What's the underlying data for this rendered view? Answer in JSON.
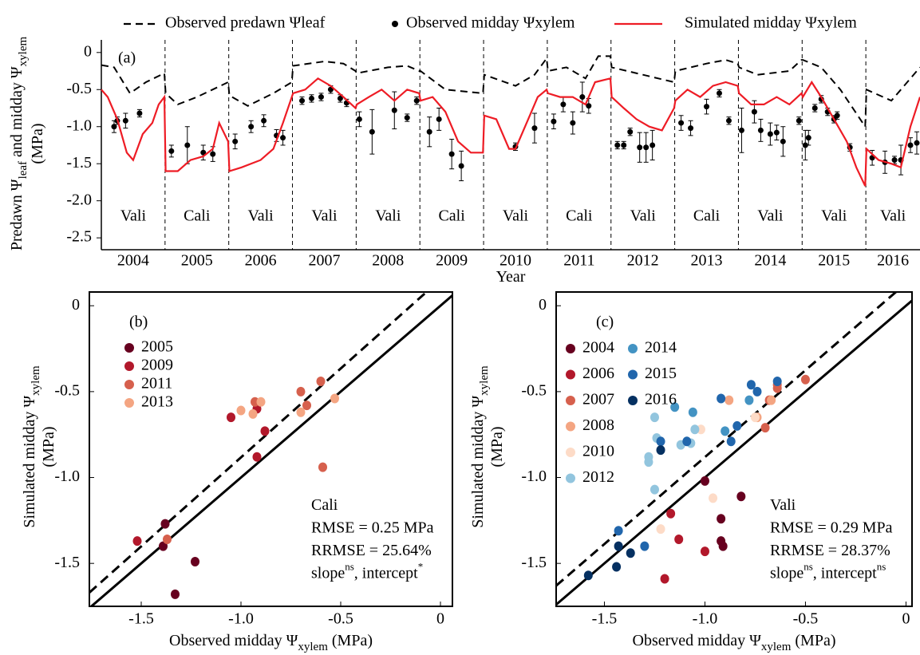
{
  "chart_data": [
    {
      "type": "line",
      "panel_label": "(a)",
      "ylabel": [
        [
          {
            "text": "Predawn Ψ",
            "sub": "leaf"
          },
          {
            "text": " and midday Ψ",
            "sub": "xylem"
          }
        ],
        [
          {
            "text": "(MPa)"
          }
        ]
      ],
      "xlabel": [
        [
          {
            "text": "Year"
          }
        ]
      ],
      "categories": [
        "2004",
        "2005",
        "2006",
        "2007",
        "2008",
        "2009",
        "2010",
        "2011",
        "2012",
        "2013",
        "2014",
        "2015",
        "2016"
      ],
      "crops": [
        "Vali",
        "Cali",
        "Vali",
        "Vali",
        "Vali",
        "Cali",
        "Vali",
        "Cali",
        "Vali",
        "Cali",
        "Vali",
        "Vali",
        "Vali"
      ],
      "xlim": [
        2004,
        2016.85
      ],
      "ylim": [
        -2.66,
        0.17
      ],
      "yticks": [
        0,
        -0.5,
        {
          "value": -1,
          "label": "-1.0"
        },
        -1.5,
        {
          "value": -2,
          "label": "-2.0"
        },
        -2.5
      ],
      "series": [
        {
          "name": "Observed predawn Ψleaf",
          "style": "dashed",
          "color": "#000000",
          "x": [
            2004,
            2004.2,
            2004.45,
            2004.7,
            2004.99,
            2005.01,
            2005.2,
            2005.5,
            2005.99,
            2006.01,
            2006.3,
            2006.7,
            2006.99,
            2007.01,
            2007.5,
            2007.8,
            2007.99,
            2008.01,
            2008.5,
            2008.8,
            2008.99,
            2009.01,
            2009.4,
            2009.99,
            2010.01,
            2010.5,
            2010.8,
            2010.99,
            2011.01,
            2011.3,
            2011.6,
            2011.8,
            2011.99,
            2012.01,
            2012.5,
            2012.99,
            2013.01,
            2013.5,
            2013.8,
            2013.99,
            2014.01,
            2014.3,
            2014.8,
            2014.99,
            2015.01,
            2015.3,
            2015.6,
            2015.99,
            2016.01,
            2016.4,
            2016.85
          ],
          "values": [
            -0.17,
            -0.2,
            -0.55,
            -0.4,
            -0.28,
            -0.55,
            -0.7,
            -0.6,
            -0.4,
            -0.58,
            -0.72,
            -0.55,
            -0.4,
            -0.18,
            -0.12,
            -0.15,
            -0.25,
            -0.28,
            -0.2,
            -0.18,
            -0.25,
            -0.25,
            -0.5,
            -0.55,
            -0.3,
            -0.45,
            -0.3,
            -0.08,
            -0.25,
            -0.2,
            -0.35,
            -0.05,
            -0.05,
            -0.2,
            -0.3,
            -0.4,
            -0.25,
            -0.15,
            -0.1,
            -0.15,
            -0.2,
            -0.3,
            -0.25,
            -0.1,
            -0.1,
            -0.2,
            -0.5,
            -1.0,
            -0.5,
            -0.65,
            -0.2
          ]
        },
        {
          "name": "Observed midday Ψxylem",
          "style": "points",
          "color": "#000000",
          "x": [
            2004.2,
            2004.25,
            2004.38,
            2004.6,
            2005.1,
            2005.35,
            2005.6,
            2005.75,
            2006.1,
            2006.35,
            2006.55,
            2006.75,
            2006.85,
            2007.15,
            2007.3,
            2007.45,
            2007.6,
            2007.75,
            2007.85,
            2008.05,
            2008.25,
            2008.6,
            2008.8,
            2008.95,
            2009.15,
            2009.3,
            2009.5,
            2009.65,
            2010.5,
            2010.8,
            2011.1,
            2011.25,
            2011.4,
            2011.55,
            2011.65,
            2012.1,
            2012.2,
            2012.3,
            2012.45,
            2012.55,
            2012.65,
            2013.1,
            2013.25,
            2013.5,
            2013.7,
            2013.85,
            2014.05,
            2014.25,
            2014.35,
            2014.5,
            2014.6,
            2014.7,
            2014.95,
            2015.05,
            2015.1,
            2015.2,
            2015.3,
            2015.4,
            2015.5,
            2015.55,
            2015.75,
            2016.1,
            2016.3,
            2016.45,
            2016.55,
            2016.7,
            2016.8
          ],
          "values": [
            -1.0,
            -0.92,
            -0.92,
            -0.82,
            -1.33,
            -1.25,
            -1.35,
            -1.37,
            -1.2,
            -1.0,
            -0.92,
            -1.12,
            -1.15,
            -0.65,
            -0.62,
            -0.6,
            -0.5,
            -0.62,
            -0.68,
            -0.9,
            -1.07,
            -0.78,
            -0.88,
            -0.65,
            -1.07,
            -0.9,
            -1.37,
            -1.53,
            -1.27,
            -1.02,
            -0.93,
            -0.7,
            -0.95,
            -0.6,
            -0.72,
            -1.25,
            -1.25,
            -1.07,
            -1.28,
            -1.28,
            -1.25,
            -0.95,
            -1.02,
            -0.73,
            -0.55,
            -0.92,
            -1.05,
            -0.8,
            -1.05,
            -1.1,
            -1.08,
            -1.2,
            -0.92,
            -1.25,
            -1.15,
            -0.75,
            -0.63,
            -0.8,
            -0.9,
            -0.85,
            -1.28,
            -1.42,
            -1.48,
            -1.45,
            -1.45,
            -1.25,
            -1.22
          ],
          "errors": [
            0.08,
            0.05,
            0.1,
            0.05,
            0.08,
            0.25,
            0.1,
            0.1,
            0.1,
            0.08,
            0.08,
            0.08,
            0.1,
            0.05,
            0.05,
            0.05,
            0.05,
            0.05,
            0.05,
            0.1,
            0.3,
            0.25,
            0.05,
            0.05,
            0.2,
            0.15,
            0.2,
            0.2,
            0.05,
            0.2,
            0.1,
            0.1,
            0.15,
            0.2,
            0.1,
            0.05,
            0.05,
            0.05,
            0.2,
            0.2,
            0.2,
            0.1,
            0.1,
            0.1,
            0.05,
            0.05,
            0.3,
            0.15,
            0.15,
            0.15,
            0.1,
            0.2,
            0.05,
            0.2,
            0.1,
            0.05,
            0.05,
            0.05,
            0.05,
            0.05,
            0.05,
            0.1,
            0.15,
            0.05,
            0.2,
            0.1,
            0.15
          ]
        },
        {
          "name": "Simulated midday Ψxylem",
          "style": "solid",
          "color": "#ee1c25",
          "x": [
            2004,
            2004.1,
            2004.25,
            2004.4,
            2004.5,
            2004.65,
            2004.8,
            2004.9,
            2004.99,
            2005.01,
            2005.2,
            2005.4,
            2005.6,
            2005.75,
            2005.85,
            2005.99,
            2006.01,
            2006.2,
            2006.5,
            2006.7,
            2006.85,
            2006.99,
            2007.01,
            2007.2,
            2007.4,
            2007.6,
            2007.8,
            2007.99,
            2008.01,
            2008.2,
            2008.4,
            2008.6,
            2008.8,
            2008.99,
            2009.01,
            2009.2,
            2009.4,
            2009.6,
            2009.8,
            2009.99,
            2010.01,
            2010.2,
            2010.4,
            2010.5,
            2010.7,
            2010.85,
            2010.99,
            2011.01,
            2011.2,
            2011.4,
            2011.6,
            2011.75,
            2011.99,
            2012.01,
            2012.2,
            2012.4,
            2012.6,
            2012.8,
            2012.99,
            2013.01,
            2013.2,
            2013.4,
            2013.6,
            2013.8,
            2013.99,
            2014.01,
            2014.2,
            2014.4,
            2014.6,
            2014.8,
            2014.99,
            2015.01,
            2015.15,
            2015.3,
            2015.5,
            2015.7,
            2015.85,
            2015.99,
            2016.01,
            2016.2,
            2016.4,
            2016.55,
            2016.7,
            2016.85
          ],
          "values": [
            -0.5,
            -0.6,
            -0.9,
            -1.35,
            -1.45,
            -1.1,
            -0.95,
            -0.7,
            -0.6,
            -1.6,
            -1.6,
            -1.45,
            -1.4,
            -1.3,
            -0.95,
            -1.2,
            -1.6,
            -1.55,
            -1.45,
            -1.3,
            -0.95,
            -0.6,
            -0.55,
            -0.5,
            -0.35,
            -0.45,
            -0.6,
            -0.75,
            -0.7,
            -0.6,
            -0.5,
            -0.65,
            -0.5,
            -0.55,
            -0.65,
            -0.6,
            -0.8,
            -1.2,
            -1.35,
            -1.35,
            -0.85,
            -0.9,
            -1.3,
            -1.3,
            -0.9,
            -0.6,
            -0.5,
            -0.55,
            -0.6,
            -0.6,
            -0.7,
            -0.4,
            -0.35,
            -0.6,
            -0.75,
            -0.9,
            -1.0,
            -1.05,
            -0.75,
            -0.65,
            -0.5,
            -0.6,
            -0.45,
            -0.4,
            -0.45,
            -0.55,
            -0.7,
            -0.7,
            -0.6,
            -0.7,
            -0.55,
            -0.6,
            -0.4,
            -0.6,
            -0.9,
            -1.2,
            -1.55,
            -1.8,
            -1.3,
            -1.45,
            -1.5,
            -1.55,
            -1.0,
            -0.6
          ]
        }
      ]
    },
    {
      "type": "scatter",
      "panel_label": "(b)",
      "ylabel": [
        [
          {
            "text": "Simulated  midday Ψ",
            "sub": "xylem"
          }
        ],
        [
          {
            "text": "(MPa)"
          }
        ]
      ],
      "xlabel": [
        [
          {
            "text": "Observed midday Ψ",
            "sub": "xylem"
          },
          {
            "text": " (MPa)"
          }
        ]
      ],
      "xlim": [
        -1.76,
        0.06
      ],
      "ylim": [
        -1.75,
        0.08
      ],
      "xticks": [
        -1.5,
        {
          "value": -1,
          "label": "-1.0"
        },
        -0.5,
        0
      ],
      "yticks": [
        0,
        -0.5,
        {
          "value": -1,
          "label": "-1.0"
        },
        -1.5
      ],
      "fit_line": {
        "x": [
          -1.76,
          -0.07
        ],
        "y": [
          -1.67,
          0.08
        ]
      },
      "annotations": [
        [
          {
            "text": "Cali"
          }
        ],
        [
          {
            "text": "RMSE = 0.25 MPa"
          }
        ],
        [
          {
            "text": "RRMSE = 25.64%"
          }
        ],
        [
          {
            "text": "slope",
            "sup": "ns"
          },
          {
            "text": ", intercept",
            "sup": "*"
          }
        ]
      ],
      "series": [
        {
          "name": "2005",
          "color": "#67001f",
          "x": [
            -1.38,
            -1.33,
            -1.23,
            -1.39
          ],
          "values": [
            -1.27,
            -1.68,
            -1.49,
            -1.4
          ]
        },
        {
          "name": "2009",
          "color": "#b2182b",
          "x": [
            -1.52,
            -1.05,
            -0.92,
            -0.88,
            -0.92
          ],
          "values": [
            -1.37,
            -0.65,
            -0.88,
            -0.73,
            -0.6
          ]
        },
        {
          "name": "2011",
          "color": "#d6604d",
          "x": [
            -1.37,
            -0.7,
            -0.67,
            -0.6,
            -0.59,
            -0.93
          ],
          "values": [
            -1.36,
            -0.5,
            -0.58,
            -0.44,
            -0.94,
            -0.56
          ]
        },
        {
          "name": "2013",
          "color": "#f4a582",
          "x": [
            -1.0,
            -0.94,
            -0.9,
            -0.7,
            -0.53
          ],
          "values": [
            -0.61,
            -0.63,
            -0.56,
            -0.62,
            -0.54
          ]
        }
      ]
    },
    {
      "type": "scatter",
      "panel_label": "(c)",
      "ylabel": [
        [
          {
            "text": "Simulated  midday Ψ",
            "sub": "xylem"
          }
        ],
        [
          {
            "text": "(MPa)"
          }
        ]
      ],
      "xlabel": [
        [
          {
            "text": "Observed midday Ψ",
            "sub": "xylem"
          },
          {
            "text": " (MPa)"
          }
        ]
      ],
      "xlim": [
        -1.74,
        0.03
      ],
      "ylim": [
        -1.75,
        0.08
      ],
      "xticks": [
        -1.5,
        {
          "value": -1,
          "label": "-1.0"
        },
        -0.5,
        0
      ],
      "yticks": [
        0,
        -0.5,
        {
          "value": -1,
          "label": "-1.0"
        },
        -1.5
      ],
      "fit_line": {
        "x": [
          -1.74,
          -0.05
        ],
        "y": [
          -1.63,
          0.08
        ]
      },
      "annotations": [
        [
          {
            "text": "Vali"
          }
        ],
        [
          {
            "text": "RMSE = 0.29 MPa"
          }
        ],
        [
          {
            "text": "RRMSE = 28.37%"
          }
        ],
        [
          {
            "text": "slope",
            "sup": "ns"
          },
          {
            "text": ", intercept",
            "sup": "ns"
          }
        ]
      ],
      "series": [
        {
          "name": "2004",
          "color": "#67001f",
          "x": [
            -0.82,
            -1.0,
            -0.92,
            -0.92,
            -0.91
          ],
          "values": [
            -1.11,
            -1.02,
            -1.24,
            -1.37,
            -1.4
          ]
        },
        {
          "name": "2006",
          "color": "#b2182b",
          "x": [
            -1.17,
            -1.13,
            -1.0,
            -1.2
          ],
          "values": [
            -1.21,
            -1.36,
            -1.43,
            -1.59
          ]
        },
        {
          "name": "2007",
          "color": "#d6604d",
          "x": [
            -0.7,
            -0.64,
            -0.64,
            -0.5,
            -0.68
          ],
          "values": [
            -0.71,
            -0.48,
            -0.46,
            -0.43,
            -0.55
          ]
        },
        {
          "name": "2008",
          "color": "#f4a582",
          "x": [
            -0.88,
            -0.74,
            -0.67
          ],
          "values": [
            -0.55,
            -0.65,
            -0.55
          ]
        },
        {
          "name": "2010",
          "color": "#fddbc7",
          "x": [
            -1.02,
            -1.22,
            -0.96,
            -0.75
          ],
          "values": [
            -0.72,
            -1.3,
            -1.12,
            -0.65
          ]
        },
        {
          "name": "2012",
          "color": "#92c5de",
          "x": [
            -1.25,
            -1.24,
            -1.28,
            -1.28,
            -1.25,
            -1.05,
            -1.07,
            -1.12
          ],
          "values": [
            -0.65,
            -0.77,
            -0.88,
            -0.91,
            -1.07,
            -0.72,
            -0.8,
            -0.81
          ]
        },
        {
          "name": "2014",
          "color": "#4393c3",
          "x": [
            -1.15,
            -1.06,
            -0.78,
            -0.9
          ],
          "values": [
            -0.59,
            -0.62,
            -0.55,
            -0.73
          ]
        },
        {
          "name": "2015",
          "color": "#2166ac",
          "x": [
            -0.92,
            -0.77,
            -0.74,
            -0.64,
            -0.84,
            -0.87,
            -1.09,
            -1.22,
            -1.3,
            -1.43
          ],
          "values": [
            -0.54,
            -0.46,
            -0.5,
            -0.44,
            -0.7,
            -0.79,
            -0.79,
            -0.79,
            -1.4,
            -1.31
          ]
        },
        {
          "name": "2016",
          "color": "#053061",
          "x": [
            -1.58,
            -1.44,
            -1.43,
            -1.37,
            -1.22
          ],
          "values": [
            -1.57,
            -1.52,
            -1.4,
            -1.44,
            -0.84
          ]
        }
      ]
    }
  ]
}
